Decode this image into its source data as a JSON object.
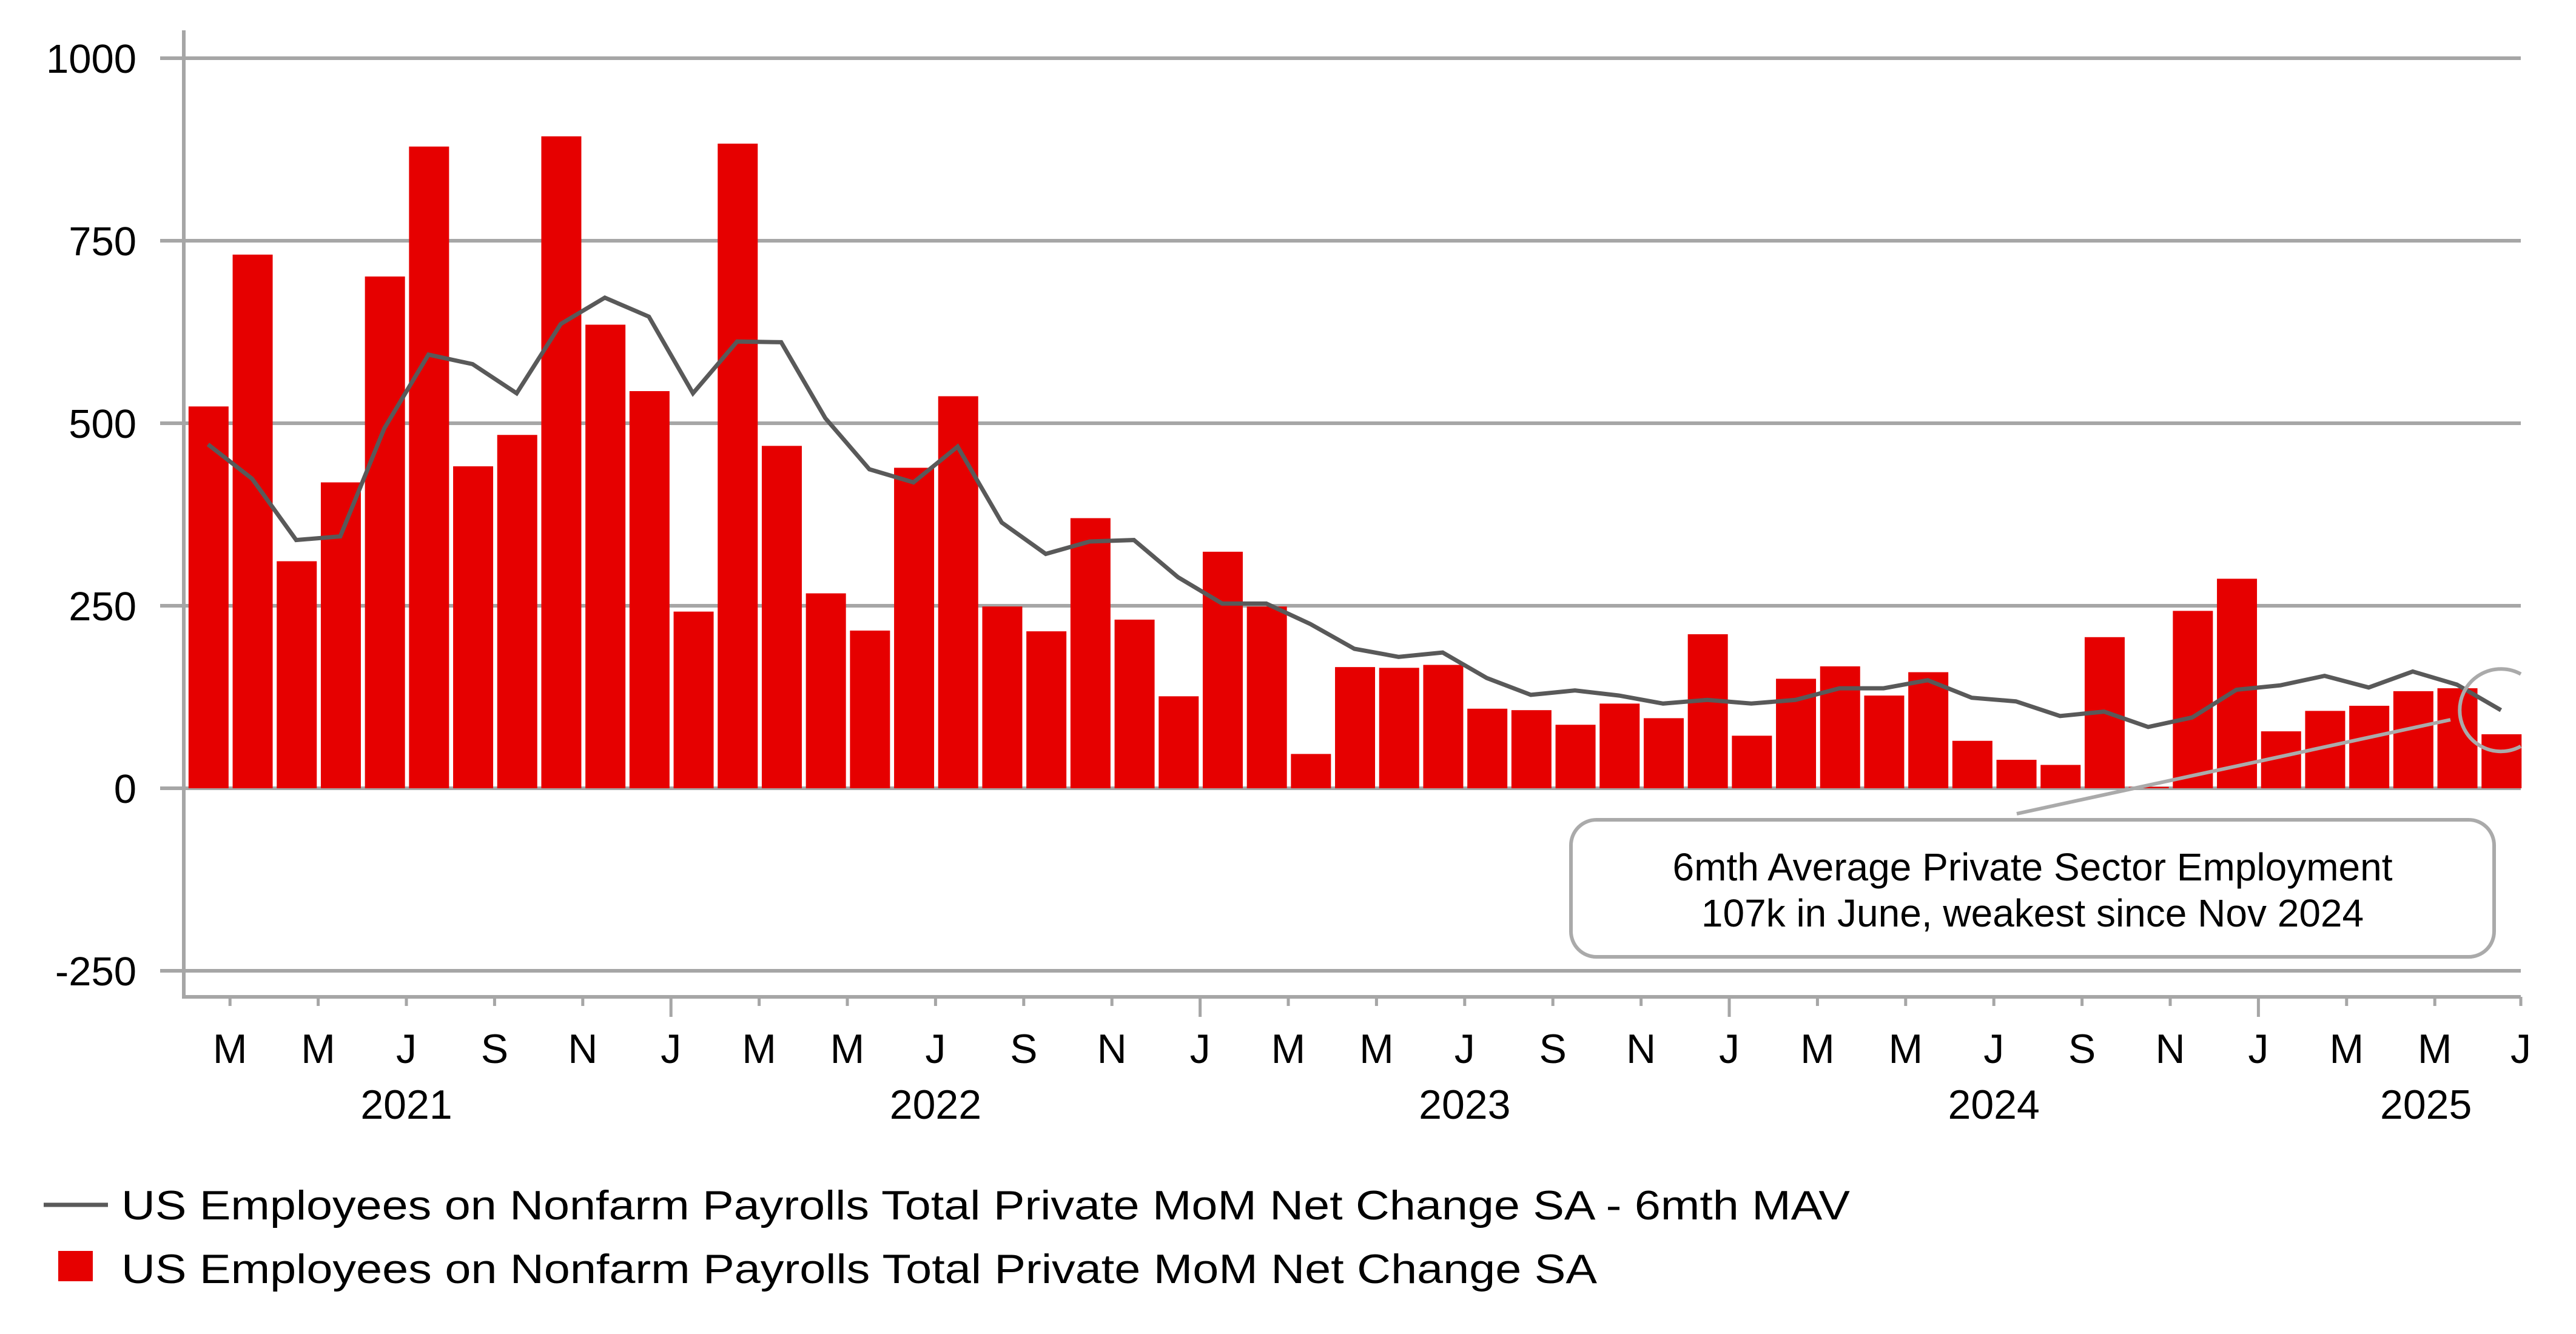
{
  "chart_data": {
    "type": "bar",
    "title": "",
    "xlabel": "",
    "ylabel": "",
    "ylim": [
      -250,
      1000
    ],
    "yticks": [
      -250,
      0,
      250,
      500,
      750,
      1000
    ],
    "ytick_labels": [
      "-250",
      "0",
      "250",
      "500",
      "750",
      "1000"
    ],
    "grid": true,
    "legend_position": "bottom-left",
    "categories": [
      "2021-02",
      "2021-03",
      "2021-04",
      "2021-05",
      "2021-06",
      "2021-07",
      "2021-08",
      "2021-09",
      "2021-10",
      "2021-11",
      "2021-12",
      "2022-01",
      "2022-02",
      "2022-03",
      "2022-04",
      "2022-05",
      "2022-06",
      "2022-07",
      "2022-08",
      "2022-09",
      "2022-10",
      "2022-11",
      "2022-12",
      "2023-01",
      "2023-02",
      "2023-03",
      "2023-04",
      "2023-05",
      "2023-06",
      "2023-07",
      "2023-08",
      "2023-09",
      "2023-10",
      "2023-11",
      "2023-12",
      "2024-01",
      "2024-02",
      "2024-03",
      "2024-04",
      "2024-05",
      "2024-06",
      "2024-07",
      "2024-08",
      "2024-09",
      "2024-10",
      "2024-11",
      "2024-12",
      "2025-01",
      "2025-02",
      "2025-03",
      "2025-04",
      "2025-05",
      "2025-06"
    ],
    "x_tick_labels": [
      {
        "index": 1,
        "label": "M"
      },
      {
        "index": 3,
        "label": "M"
      },
      {
        "index": 5,
        "label": "J"
      },
      {
        "index": 7,
        "label": "S"
      },
      {
        "index": 9,
        "label": "N"
      },
      {
        "index": 11,
        "label": "J",
        "major": true
      },
      {
        "index": 13,
        "label": "M"
      },
      {
        "index": 15,
        "label": "M"
      },
      {
        "index": 17,
        "label": "J"
      },
      {
        "index": 19,
        "label": "S"
      },
      {
        "index": 21,
        "label": "N"
      },
      {
        "index": 23,
        "label": "J",
        "major": true
      },
      {
        "index": 25,
        "label": "M"
      },
      {
        "index": 27,
        "label": "M"
      },
      {
        "index": 29,
        "label": "J"
      },
      {
        "index": 31,
        "label": "S"
      },
      {
        "index": 33,
        "label": "N"
      },
      {
        "index": 35,
        "label": "J",
        "major": true
      },
      {
        "index": 37,
        "label": "M"
      },
      {
        "index": 39,
        "label": "M"
      },
      {
        "index": 41,
        "label": "J"
      },
      {
        "index": 43,
        "label": "S"
      },
      {
        "index": 45,
        "label": "N"
      },
      {
        "index": 47,
        "label": "J",
        "major": true
      },
      {
        "index": 49,
        "label": "M"
      },
      {
        "index": 51,
        "label": "M"
      },
      {
        "index": 53,
        "label": "J"
      }
    ],
    "year_labels": [
      {
        "label": "2021",
        "center_index": 5
      },
      {
        "label": "2022",
        "center_index": 17
      },
      {
        "label": "2023",
        "center_index": 29
      },
      {
        "label": "2024",
        "center_index": 41
      },
      {
        "label": "2025",
        "center_index": 50.8
      }
    ],
    "series": [
      {
        "name": "US Employees on Nonfarm Payrolls Total Private MoM Net Change SA",
        "type": "bar",
        "color": "#e60000",
        "values": [
          523,
          731,
          311,
          419,
          701,
          879,
          441,
          484,
          893,
          635,
          544,
          242,
          883,
          469,
          267,
          216,
          439,
          537,
          249,
          215,
          370,
          231,
          126,
          324,
          249,
          47,
          166,
          165,
          169,
          109,
          107,
          87,
          116,
          96,
          211,
          72,
          150,
          167,
          127,
          159,
          65,
          39,
          32,
          207,
          2,
          243,
          287,
          78,
          106,
          113,
          133,
          137,
          74
        ]
      },
      {
        "name": "US Employees on Nonfarm Payrolls Total Private MoM Net Change SA - 6mth MAV",
        "type": "line",
        "color": "#595959",
        "values": [
          471,
          424,
          340,
          345,
          493,
          594,
          581,
          541,
          636,
          672,
          646,
          541,
          612,
          611,
          507,
          437,
          419,
          468,
          364,
          321,
          338,
          340,
          289,
          253,
          253,
          225,
          191,
          180,
          186,
          151,
          128,
          134,
          127,
          116,
          121,
          116,
          121,
          137,
          137,
          148,
          124,
          119,
          99,
          105,
          84,
          97,
          135,
          141,
          154,
          138,
          160,
          142,
          107
        ]
      }
    ],
    "annotation": {
      "lines": [
        "6mth Average Private Sector Employment",
        "107k in June, weakest since Nov 2024"
      ],
      "highlight_index": 52,
      "highlight_value": 107
    }
  },
  "legend": [
    {
      "label": "US Employees on Nonfarm Payrolls Total Private MoM Net Change SA - 6mth MAV",
      "swatch": "line",
      "color": "#595959"
    },
    {
      "label": "US Employees on Nonfarm Payrolls Total Private MoM Net Change SA",
      "swatch": "box",
      "color": "#e60000"
    }
  ],
  "colors": {
    "grid": "#a6a6a6",
    "annotation_border": "#aaaaaa"
  }
}
